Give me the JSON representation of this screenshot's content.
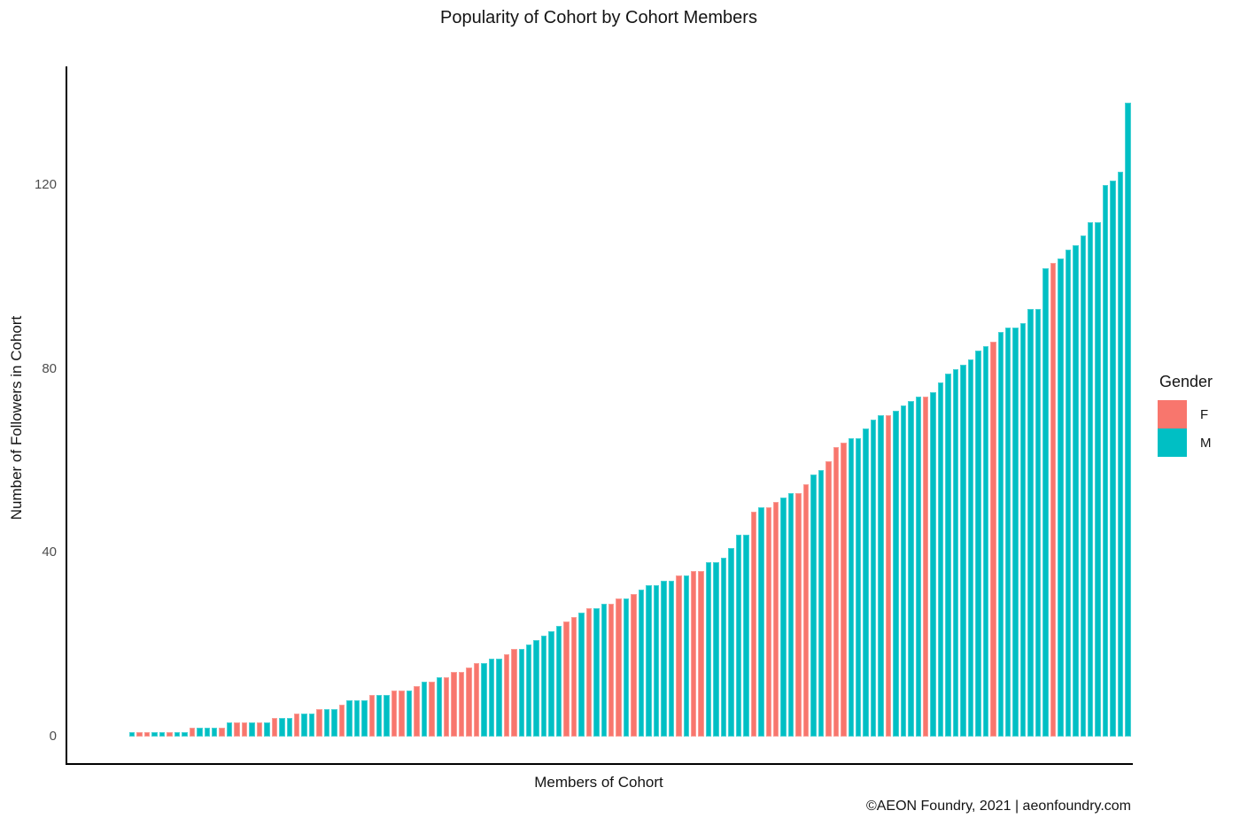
{
  "title": "Popularity of Cohort by Cohort Members",
  "footer": "©AEON Foundry, 2021 | aeonfoundry.com",
  "colors": {
    "F": "#F8766D",
    "M": "#00BFC4"
  },
  "legend": {
    "title": "Gender",
    "items": [
      {
        "label": "F",
        "color": "#F8766D"
      },
      {
        "label": "M",
        "color": "#00BFC4"
      }
    ]
  },
  "chart_data": {
    "type": "bar",
    "title": "Popularity of Cohort by Cohort Members",
    "xlabel": "Members of Cohort",
    "ylabel": "Number of Followers in Cohort",
    "yticks": [
      0,
      40,
      80,
      120
    ],
    "ylim": [
      0,
      140
    ],
    "grid": false,
    "legend_position": "right",
    "sort": "ascending",
    "x_note": "one bar per anonymous cohort member, no x tick labels",
    "values": [
      1,
      1,
      1,
      1,
      1,
      1,
      1,
      1,
      2,
      2,
      2,
      2,
      2,
      3,
      3,
      3,
      3,
      3,
      3,
      4,
      4,
      4,
      5,
      5,
      5,
      6,
      6,
      6,
      7,
      8,
      8,
      8,
      9,
      9,
      9,
      10,
      10,
      10,
      11,
      12,
      12,
      13,
      13,
      14,
      14,
      15,
      16,
      16,
      17,
      17,
      18,
      19,
      19,
      20,
      21,
      22,
      23,
      24,
      25,
      26,
      27,
      28,
      28,
      29,
      29,
      30,
      30,
      31,
      32,
      33,
      33,
      34,
      34,
      35,
      35,
      36,
      36,
      38,
      38,
      39,
      41,
      44,
      44,
      49,
      50,
      50,
      51,
      52,
      53,
      53,
      55,
      57,
      58,
      60,
      63,
      64,
      65,
      65,
      67,
      69,
      70,
      70,
      71,
      72,
      73,
      74,
      74,
      75,
      77,
      79,
      80,
      81,
      82,
      84,
      85,
      86,
      88,
      89,
      89,
      90,
      93,
      93,
      102,
      103,
      104,
      106,
      107,
      109,
      112,
      112,
      120,
      121,
      123,
      138
    ],
    "genders": [
      "M",
      "F",
      "F",
      "M",
      "M",
      "F",
      "M",
      "M",
      "F",
      "M",
      "M",
      "M",
      "F",
      "M",
      "F",
      "F",
      "M",
      "F",
      "M",
      "F",
      "M",
      "M",
      "F",
      "M",
      "M",
      "F",
      "M",
      "M",
      "F",
      "M",
      "M",
      "M",
      "F",
      "M",
      "M",
      "F",
      "F",
      "M",
      "F",
      "M",
      "F",
      "M",
      "F",
      "F",
      "F",
      "F",
      "F",
      "M",
      "M",
      "M",
      "F",
      "F",
      "M",
      "M",
      "M",
      "M",
      "M",
      "M",
      "F",
      "F",
      "M",
      "F",
      "M",
      "M",
      "F",
      "F",
      "M",
      "F",
      "M",
      "M",
      "M",
      "M",
      "M",
      "F",
      "M",
      "F",
      "F",
      "M",
      "M",
      "M",
      "M",
      "M",
      "M",
      "F",
      "M",
      "F",
      "F",
      "M",
      "M",
      "F",
      "F",
      "M",
      "M",
      "F",
      "F",
      "F",
      "M",
      "M",
      "M",
      "M",
      "M",
      "F",
      "M",
      "M",
      "M",
      "M",
      "F",
      "M",
      "M",
      "M",
      "M",
      "M",
      "M",
      "M",
      "M",
      "F",
      "M",
      "M",
      "M",
      "M",
      "M",
      "M",
      "M",
      "F",
      "M",
      "M",
      "M",
      "M",
      "M",
      "M",
      "M",
      "M",
      "M",
      "M"
    ]
  }
}
